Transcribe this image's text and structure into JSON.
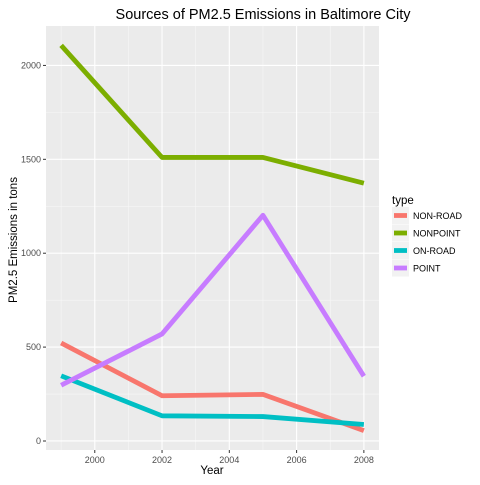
{
  "chart_data": {
    "type": "line",
    "title": "Sources of PM2.5 Emissions in Baltimore City",
    "xlabel": "Year",
    "ylabel": "PM2.5 Emissions in tons",
    "x": [
      1999,
      2002,
      2005,
      2008
    ],
    "xlim": [
      1998.55,
      2008.45
    ],
    "ylim": [
      -48,
      2210
    ],
    "x_ticks": [
      2000,
      2002,
      2004,
      2006,
      2008
    ],
    "y_ticks": [
      0,
      500,
      1000,
      1500,
      2000
    ],
    "x_tick_labels": [
      "2000",
      "2002",
      "2004",
      "2006",
      "2008"
    ],
    "y_tick_labels": [
      "0",
      "500",
      "1000",
      "1500",
      "2000"
    ],
    "grid": true,
    "legend_title": "type",
    "legend_position": "right",
    "series": [
      {
        "name": "NON-ROAD",
        "color": "#F8766D",
        "values": [
          522,
          241,
          248,
          55
        ]
      },
      {
        "name": "NONPOINT",
        "color": "#7CAE00",
        "values": [
          2107,
          1510,
          1510,
          1373
        ]
      },
      {
        "name": "ON-ROAD",
        "color": "#00BFC4",
        "values": [
          347,
          134,
          130,
          88
        ]
      },
      {
        "name": "POINT",
        "color": "#C77CFF",
        "values": [
          297,
          570,
          1202,
          345
        ]
      }
    ]
  }
}
